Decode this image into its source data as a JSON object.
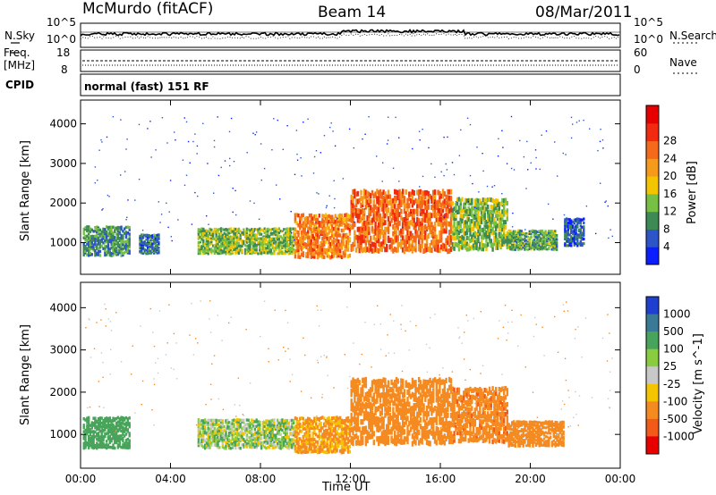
{
  "header": {
    "station": "McMurdo (fitACF)",
    "beam": "Beam 14",
    "date": "08/Mar/2011"
  },
  "noise_panel": {
    "left_label": "N.Sky",
    "right_label": "N.Search",
    "left_ticks": [
      "10^5",
      "10^0"
    ],
    "right_ticks": [
      "10^5",
      "10^0"
    ]
  },
  "freq_panel": {
    "left_label_1": "Freq.",
    "left_label_2": "[MHz]",
    "right_label": "Nave",
    "left_ticks": [
      "18",
      "8"
    ],
    "right_ticks": [
      "60",
      "0"
    ]
  },
  "cpid": {
    "label": "CPID",
    "value": "normal (fast) 151 RF"
  },
  "chart_data": [
    {
      "type": "heatmap",
      "name": "power",
      "ylabel": "Slant Range [km]",
      "xlabel": "",
      "y_ticks": [
        1000,
        2000,
        3000,
        4000
      ],
      "ylim": [
        200,
        4600
      ],
      "x_ticks": [
        "00:00",
        "04:00",
        "08:00",
        "12:00",
        "16:00",
        "20:00",
        "00:00"
      ],
      "xlim_hours": [
        0,
        24
      ],
      "colorbar": {
        "label": "Power [dB]",
        "ticks": [
          4,
          8,
          12,
          16,
          20,
          24,
          28
        ],
        "colors": [
          "#0a1eff",
          "#2e55c8",
          "#3e8a55",
          "#76c043",
          "#f5c400",
          "#f59a1a",
          "#f56a1a",
          "#f22a10",
          "#e60000"
        ]
      },
      "echo_regions": [
        {
          "t": [
            0.1,
            2.2
          ],
          "r": [
            650,
            1400
          ],
          "level": 10
        },
        {
          "t": [
            2.6,
            3.5
          ],
          "r": [
            700,
            1200
          ],
          "level": 8
        },
        {
          "t": [
            5.2,
            9.5
          ],
          "r": [
            700,
            1350
          ],
          "level": 14
        },
        {
          "t": [
            9.5,
            12.0
          ],
          "r": [
            600,
            1700
          ],
          "level": 24
        },
        {
          "t": [
            12.0,
            16.5
          ],
          "r": [
            750,
            2300
          ],
          "level": 26
        },
        {
          "t": [
            16.5,
            19.0
          ],
          "r": [
            800,
            2100
          ],
          "level": 14
        },
        {
          "t": [
            19.0,
            21.2
          ],
          "r": [
            800,
            1300
          ],
          "level": 12
        },
        {
          "t": [
            21.5,
            22.4
          ],
          "r": [
            900,
            1600
          ],
          "level": 6
        }
      ]
    },
    {
      "type": "heatmap",
      "name": "velocity",
      "ylabel": "Slant Range [km]",
      "xlabel": "Time UT",
      "y_ticks": [
        1000,
        2000,
        3000,
        4000
      ],
      "ylim": [
        200,
        4600
      ],
      "x_ticks": [
        "00:00",
        "04:00",
        "08:00",
        "12:00",
        "16:00",
        "20:00",
        "00:00"
      ],
      "xlim_hours": [
        0,
        24
      ],
      "colorbar": {
        "label": "Velocity [m s^-1]",
        "ticks": [
          1000,
          500,
          100,
          25,
          -25,
          -100,
          -500,
          -1000
        ],
        "colors": [
          "#1f3fd0",
          "#3a7a96",
          "#48a45a",
          "#8acc40",
          "#c8c8c8",
          "#f5c400",
          "#f58a20",
          "#f25a1a",
          "#e80000"
        ]
      },
      "echo_regions": [
        {
          "t": [
            0.1,
            2.2
          ],
          "r": [
            650,
            1400
          ],
          "v": 300
        },
        {
          "t": [
            5.2,
            9.5
          ],
          "r": [
            650,
            1350
          ],
          "v": 60
        },
        {
          "t": [
            9.5,
            12.0
          ],
          "r": [
            550,
            1400
          ],
          "v": -150
        },
        {
          "t": [
            12.0,
            16.5
          ],
          "r": [
            750,
            2300
          ],
          "v": -300
        },
        {
          "t": [
            16.5,
            19.0
          ],
          "r": [
            800,
            2100
          ],
          "v": -400
        },
        {
          "t": [
            19.0,
            21.5
          ],
          "r": [
            700,
            1300
          ],
          "v": -250
        }
      ]
    }
  ]
}
